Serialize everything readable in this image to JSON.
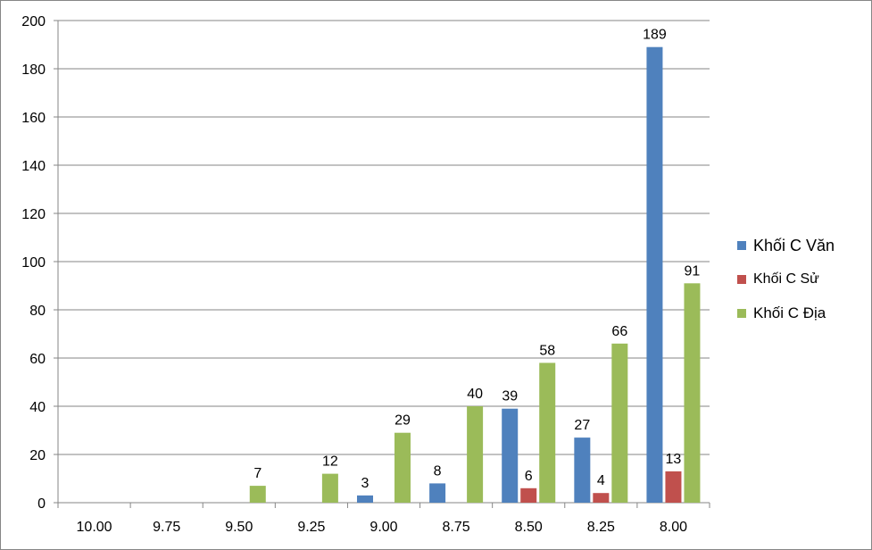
{
  "chart_data": {
    "type": "bar",
    "categories": [
      "10.00",
      "9.75",
      "9.50",
      "9.25",
      "9.00",
      "8.75",
      "8.50",
      "8.25",
      "8.00"
    ],
    "series": [
      {
        "name": "Khối C Văn",
        "color": "#4F81BD",
        "values": [
          null,
          null,
          null,
          null,
          3,
          8,
          39,
          27,
          189
        ]
      },
      {
        "name": "Khối C Sử",
        "color": "#C0504D",
        "values": [
          null,
          null,
          null,
          null,
          null,
          null,
          6,
          4,
          13
        ]
      },
      {
        "name": "Khối C Địa",
        "color": "#9BBB59",
        "values": [
          null,
          null,
          7,
          12,
          29,
          40,
          58,
          66,
          91
        ]
      }
    ],
    "y_ticks": [
      "0",
      "20",
      "40",
      "60",
      "80",
      "100",
      "120",
      "140",
      "160",
      "180",
      "200"
    ],
    "ylim": [
      0,
      200
    ],
    "grid": true,
    "legend_position": "right",
    "title": "",
    "xlabel": "",
    "ylabel": ""
  }
}
